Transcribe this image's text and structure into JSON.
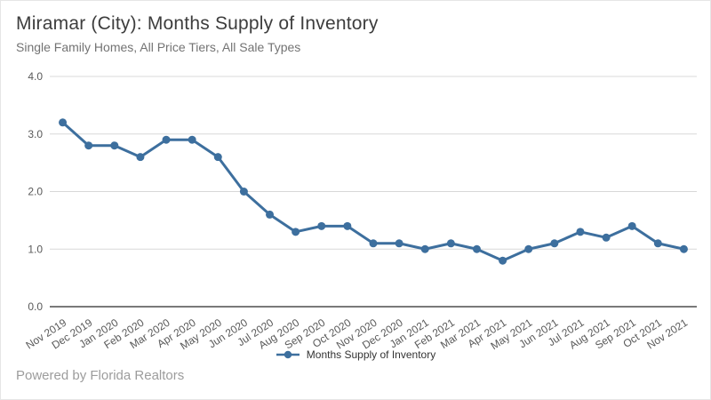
{
  "header": {
    "title": "Miramar (City): Months Supply of Inventory",
    "subtitle": "Single Family Homes, All Price Tiers, All Sale Types"
  },
  "legend": {
    "label": "Months Supply of Inventory"
  },
  "footer": {
    "text": "Powered by Florida Realtors"
  },
  "colors": {
    "series": "#3d6f9e",
    "grid": "#d8d8d8",
    "axis_line": "#4d4d4d",
    "tick_text": "#595959",
    "title_text": "#3d3d3d",
    "subtitle_text": "#737373",
    "footer_text": "#9c9c9c",
    "border": "#e6e6e6"
  },
  "chart_data": {
    "type": "line",
    "title": "Miramar (City): Months Supply of Inventory",
    "subtitle": "Single Family Homes, All Price Tiers, All Sale Types",
    "categories": [
      "Nov 2019",
      "Dec 2019",
      "Jan 2020",
      "Feb 2020",
      "Mar 2020",
      "Apr 2020",
      "May 2020",
      "Jun 2020",
      "Jul 2020",
      "Aug 2020",
      "Sep 2020",
      "Oct 2020",
      "Nov 2020",
      "Dec 2020",
      "Jan 2021",
      "Feb 2021",
      "Mar 2021",
      "Apr 2021",
      "May 2021",
      "Jun 2021",
      "Jul 2021",
      "Aug 2021",
      "Sep 2021",
      "Oct 2021",
      "Nov 2021"
    ],
    "series": [
      {
        "name": "Months Supply of Inventory",
        "values": [
          3.2,
          2.8,
          2.8,
          2.6,
          2.9,
          2.9,
          2.6,
          2.0,
          1.6,
          1.3,
          1.4,
          1.4,
          1.1,
          1.1,
          1.0,
          1.1,
          1.0,
          0.8,
          1.0,
          1.1,
          1.3,
          1.2,
          1.4,
          1.1,
          1.0
        ]
      }
    ],
    "xlabel": "",
    "ylabel": "",
    "ylim": [
      0,
      4
    ],
    "yticks": [
      0,
      1,
      2,
      3,
      4
    ],
    "ytick_labels": [
      "0.0",
      "1.0",
      "2.0",
      "3.0",
      "4.0"
    ],
    "grid": true,
    "marker": "circle",
    "x_label_rotation": -33,
    "legend_position": "bottom"
  }
}
